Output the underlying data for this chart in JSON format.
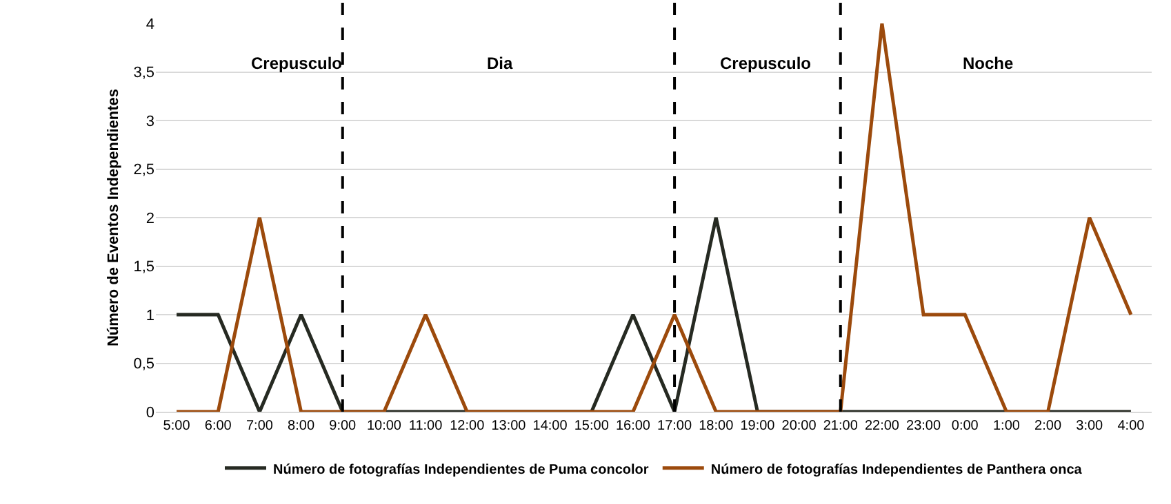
{
  "chart_data": {
    "type": "line",
    "ylabel": "Número de Eventos Independientes",
    "categories": [
      "5:00",
      "6:00",
      "7:00",
      "8:00",
      "9:00",
      "10:00",
      "11:00",
      "12:00",
      "13:00",
      "14:00",
      "15:00",
      "16:00",
      "17:00",
      "18:00",
      "19:00",
      "20:00",
      "21:00",
      "22:00",
      "23:00",
      "0:00",
      "1:00",
      "2:00",
      "3:00",
      "4:00"
    ],
    "series": [
      {
        "name": "Número de fotografías Independientes de Puma concolor",
        "color": "#262a22",
        "values": [
          1,
          1,
          0,
          1,
          0,
          0,
          0,
          0,
          0,
          0,
          0,
          1,
          0,
          2,
          0,
          0,
          0,
          0,
          0,
          0,
          0,
          0,
          0,
          0
        ]
      },
      {
        "name": "Número de fotografías Independientes de Panthera onca",
        "color": "#9c4a0c",
        "values": [
          0,
          0,
          2,
          0,
          0,
          0,
          1,
          0,
          0,
          0,
          0,
          0,
          1,
          0,
          0,
          0,
          0,
          4,
          1,
          1,
          0,
          0,
          2,
          1
        ]
      }
    ],
    "ylim": [
      0,
      4
    ],
    "yticks": [
      0,
      {
        "value": 0.5,
        "label": "0,5"
      },
      1,
      {
        "value": 1.5,
        "label": "1,5"
      },
      2,
      {
        "value": 2.5,
        "label": "2,5"
      },
      3,
      {
        "value": 3.5,
        "label": "3,5"
      },
      4
    ],
    "grid": "y",
    "legend": "bottom",
    "marker": "none",
    "line_style": "solid",
    "ref_lines": [
      {
        "axis": "x",
        "value": "9:00",
        "color": "#000000",
        "line_style": "dashed"
      },
      {
        "axis": "x",
        "value": "17:00",
        "color": "#000000",
        "line_style": "dashed"
      },
      {
        "axis": "x",
        "value": "21:00",
        "color": "#000000",
        "line_style": "dashed"
      }
    ],
    "annotations": [
      "Crepusculo",
      "Dia",
      "Crepusculo",
      "Noche"
    ]
  }
}
